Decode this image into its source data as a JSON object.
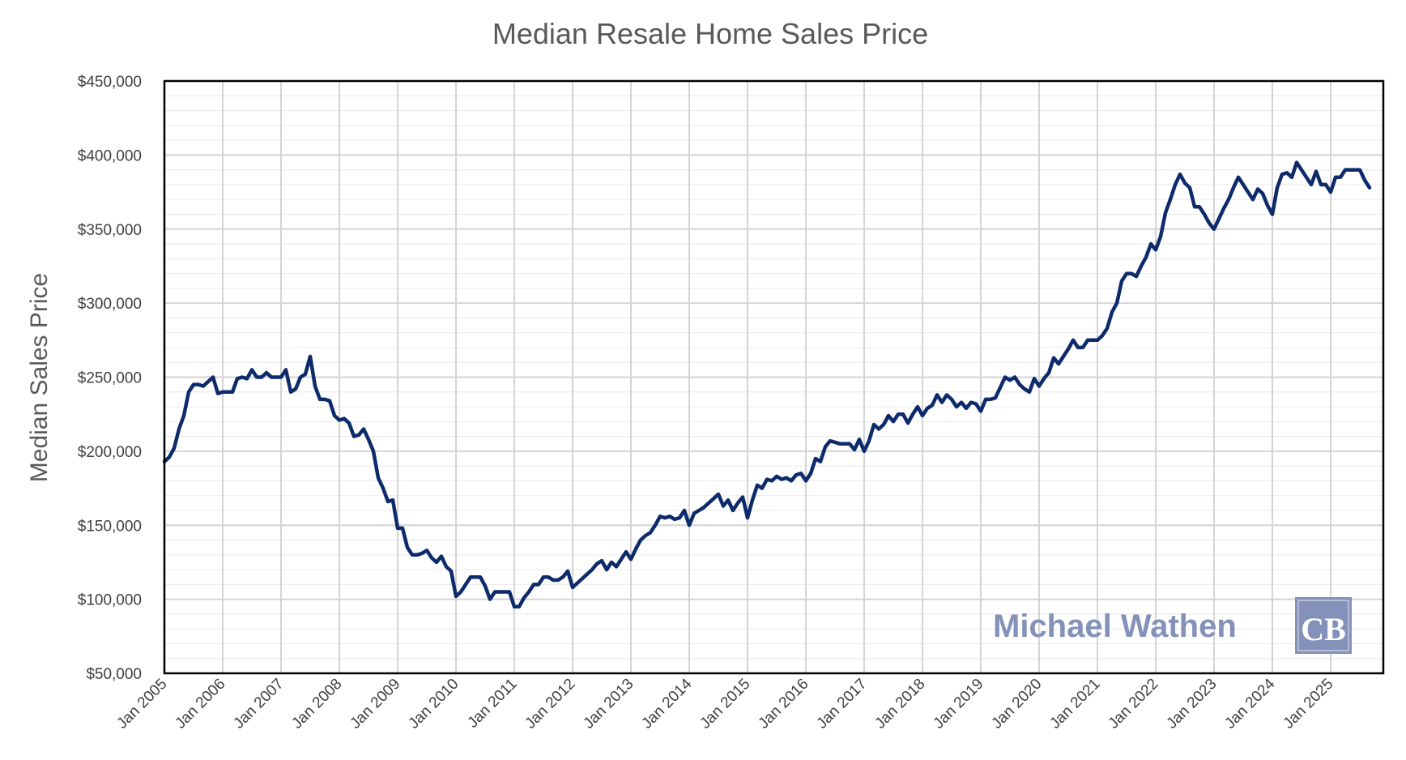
{
  "chart_data": {
    "type": "line",
    "title": "Median Resale Home Sales Price",
    "xlabel": "",
    "ylabel": "Median Sales Price",
    "ylim": [
      50000,
      450000
    ],
    "y_ticks": [
      "$50,000",
      "$100,000",
      "$150,000",
      "$200,000",
      "$250,000",
      "$300,000",
      "$350,000",
      "$400,000",
      "$450,000"
    ],
    "y_tick_values": [
      50000,
      100000,
      150000,
      200000,
      250000,
      300000,
      350000,
      400000,
      450000
    ],
    "x_ticks": [
      "Jan 2005",
      "Jan 2006",
      "Jan 2007",
      "Jan 2008",
      "Jan 2009",
      "Jan 2010",
      "Jan 2011",
      "Jan 2012",
      "Jan 2013",
      "Jan 2014",
      "Jan 2015",
      "Jan 2016",
      "Jan 2017",
      "Jan 2018",
      "Jan 2019",
      "Jan 2020",
      "Jan 2021",
      "Jan 2022",
      "Jan 2023",
      "Jan 2024",
      "Jan 2025"
    ],
    "x_start": "Jan 2005",
    "x_frequency": "monthly",
    "grid": true,
    "series": [
      {
        "name": "Median Sales Price",
        "color": "#0d2a6b",
        "values": [
          193000,
          196000,
          202000,
          215000,
          224000,
          240000,
          245000,
          245000,
          244000,
          247000,
          250000,
          239000,
          240000,
          240000,
          240000,
          249000,
          250000,
          249000,
          255000,
          250000,
          250000,
          253000,
          250000,
          250000,
          250000,
          255000,
          240000,
          242000,
          250000,
          252000,
          264000,
          244000,
          235000,
          235000,
          234000,
          224000,
          221000,
          222000,
          219000,
          210000,
          211000,
          215000,
          208000,
          200000,
          182000,
          175000,
          166000,
          167000,
          148000,
          148000,
          135000,
          130000,
          130000,
          131000,
          133000,
          128000,
          125000,
          129000,
          122000,
          119000,
          102000,
          105000,
          110000,
          115000,
          115000,
          115000,
          109000,
          100000,
          105000,
          105000,
          105000,
          105000,
          95000,
          95000,
          101000,
          105000,
          110000,
          110000,
          115000,
          115000,
          113000,
          113000,
          115000,
          119000,
          108000,
          111000,
          114000,
          117000,
          120000,
          124000,
          126000,
          120000,
          125000,
          122000,
          127000,
          132000,
          127000,
          134000,
          140000,
          143000,
          145000,
          150000,
          156000,
          155000,
          156000,
          154000,
          155000,
          160000,
          150000,
          158000,
          160000,
          162000,
          165000,
          168000,
          171000,
          163000,
          167000,
          160000,
          165000,
          169000,
          155000,
          167000,
          177000,
          175000,
          181000,
          180000,
          183000,
          181000,
          182000,
          180000,
          184000,
          185000,
          180000,
          185000,
          195000,
          193000,
          203000,
          207000,
          206000,
          205000,
          205000,
          205000,
          201000,
          208000,
          200000,
          207000,
          218000,
          215000,
          218000,
          224000,
          220000,
          225000,
          225000,
          219000,
          225000,
          230000,
          224000,
          229000,
          231000,
          238000,
          233000,
          238000,
          235000,
          230000,
          233000,
          229000,
          233000,
          232000,
          227000,
          235000,
          235000,
          236000,
          243000,
          250000,
          248000,
          250000,
          245000,
          242000,
          240000,
          249000,
          244000,
          249000,
          253000,
          263000,
          259000,
          264000,
          269000,
          275000,
          270000,
          270000,
          275000,
          275000,
          275000,
          278000,
          283000,
          294000,
          300000,
          315000,
          320000,
          320000,
          318000,
          325000,
          331000,
          340000,
          336000,
          345000,
          361000,
          370000,
          380000,
          387000,
          381000,
          378000,
          365000,
          365000,
          360000,
          354000,
          350000,
          357000,
          364000,
          370000,
          378000,
          385000,
          380000,
          375000,
          370000,
          377000,
          374000,
          366000,
          360000,
          378000,
          387000,
          388000,
          385000,
          395000,
          390000,
          385000,
          380000,
          389000,
          380000,
          380000,
          375000,
          385000,
          385000,
          390000,
          390000,
          390000,
          390000,
          383000,
          378000
        ]
      }
    ],
    "watermark": "Michael Wathen",
    "logo_text": "CB"
  }
}
